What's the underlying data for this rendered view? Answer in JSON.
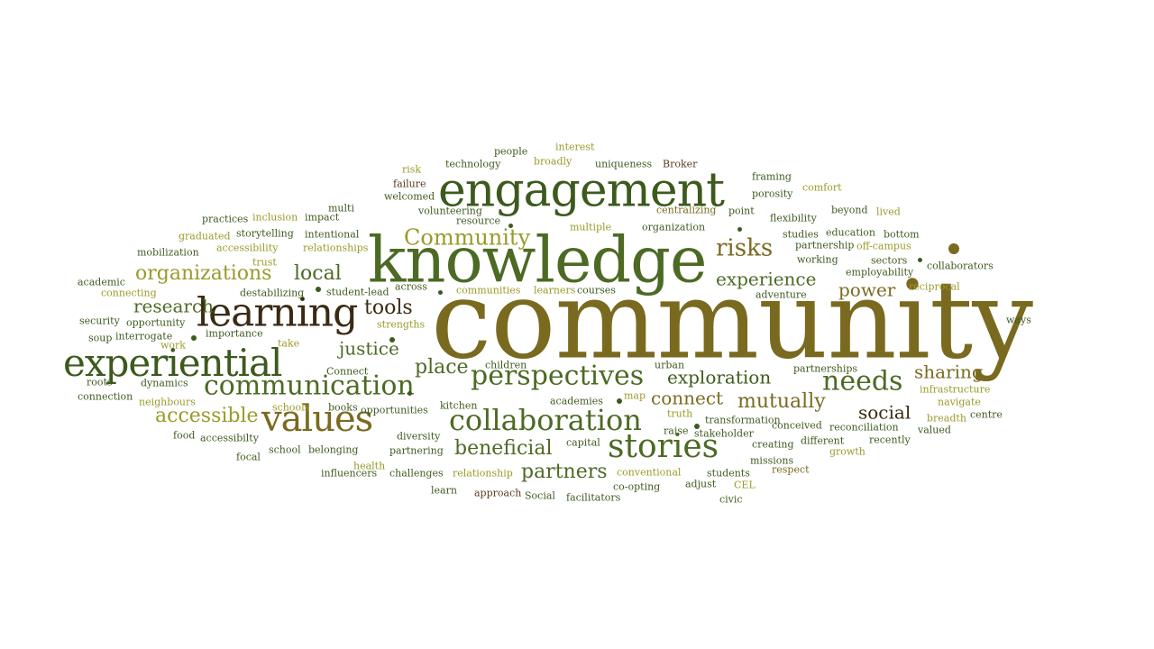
{
  "colors": {
    "darkgreen": "#3d5a1e",
    "green": "#4d6a24",
    "olive": "#7a6a20",
    "brown": "#5a3a1a",
    "yellowgreen": "#9a9a2a",
    "darkbrown": "#3a2a14"
  },
  "words": [
    {
      "text": "community",
      "color": "olive"
    },
    {
      "text": "knowledge",
      "color": "green"
    },
    {
      "text": "engagement",
      "color": "darkgreen"
    },
    {
      "text": "experiential",
      "color": "darkgreen"
    },
    {
      "text": "learning",
      "color": "darkbrown"
    },
    {
      "text": "values",
      "color": "olive"
    },
    {
      "text": "communication",
      "color": "green"
    },
    {
      "text": "collaboration",
      "color": "green"
    },
    {
      "text": "stories",
      "color": "green"
    },
    {
      "text": "perspectives",
      "color": "green"
    },
    {
      "text": "needs",
      "color": "green"
    },
    {
      "text": "risks",
      "color": "olive"
    },
    {
      "text": "Community",
      "color": "yellowgreen"
    },
    {
      "text": "organizations",
      "color": "yellowgreen"
    },
    {
      "text": "local",
      "color": "green"
    },
    {
      "text": "research",
      "color": "green"
    },
    {
      "text": "tools",
      "color": "darkbrown"
    },
    {
      "text": "justice",
      "color": "green"
    },
    {
      "text": "place",
      "color": "green"
    },
    {
      "text": "accessible",
      "color": "yellowgreen"
    },
    {
      "text": "beneficial",
      "color": "green"
    },
    {
      "text": "partners",
      "color": "green"
    },
    {
      "text": "exploration",
      "color": "darkgreen"
    },
    {
      "text": "experience",
      "color": "green"
    },
    {
      "text": "power",
      "color": "olive"
    },
    {
      "text": "sharing",
      "color": "olive"
    },
    {
      "text": "connect",
      "color": "olive"
    },
    {
      "text": "mutually",
      "color": "olive"
    },
    {
      "text": "social",
      "color": "darkbrown"
    },
    {
      "text": "people",
      "color": "darkgreen"
    },
    {
      "text": "interest",
      "color": "yellowgreen"
    },
    {
      "text": "technology",
      "color": "darkgreen"
    },
    {
      "text": "broadly",
      "color": "yellowgreen"
    },
    {
      "text": "uniqueness",
      "color": "darkgreen"
    },
    {
      "text": "Broker",
      "color": "brown"
    },
    {
      "text": "risk",
      "color": "yellowgreen"
    },
    {
      "text": "failure",
      "color": "brown"
    },
    {
      "text": "framing",
      "color": "darkgreen"
    },
    {
      "text": "comfort",
      "color": "yellowgreen"
    },
    {
      "text": "porosity",
      "color": "darkgreen"
    },
    {
      "text": "welcomed",
      "color": "darkgreen"
    },
    {
      "text": "multi",
      "color": "darkgreen"
    },
    {
      "text": "volunteering",
      "color": "darkgreen"
    },
    {
      "text": "centralizing",
      "color": "olive"
    },
    {
      "text": "point",
      "color": "darkgreen"
    },
    {
      "text": "beyond",
      "color": "darkgreen"
    },
    {
      "text": "lived",
      "color": "yellowgreen"
    },
    {
      "text": "practices",
      "color": "darkgreen"
    },
    {
      "text": "inclusion",
      "color": "yellowgreen"
    },
    {
      "text": "impact",
      "color": "darkgreen"
    },
    {
      "text": "resource",
      "color": "darkgreen"
    },
    {
      "text": "flexibility",
      "color": "darkgreen"
    },
    {
      "text": "storytelling",
      "color": "darkgreen"
    },
    {
      "text": "intentional",
      "color": "darkgreen"
    },
    {
      "text": "multiple",
      "color": "yellowgreen"
    },
    {
      "text": "organization",
      "color": "darkgreen"
    },
    {
      "text": "studies",
      "color": "darkgreen"
    },
    {
      "text": "education",
      "color": "darkgreen"
    },
    {
      "text": "bottom",
      "color": "darkgreen"
    },
    {
      "text": "graduated",
      "color": "yellowgreen"
    },
    {
      "text": "partnership",
      "color": "darkgreen"
    },
    {
      "text": "off-campus",
      "color": "yellowgreen"
    },
    {
      "text": "accessibility",
      "color": "yellowgreen"
    },
    {
      "text": "relationships",
      "color": "yellowgreen"
    },
    {
      "text": "mobilization",
      "color": "darkgreen"
    },
    {
      "text": "trust",
      "color": "yellowgreen"
    },
    {
      "text": "working",
      "color": "darkgreen"
    },
    {
      "text": "sectors",
      "color": "darkgreen"
    },
    {
      "text": "employability",
      "color": "darkgreen"
    },
    {
      "text": "collaborators",
      "color": "darkgreen"
    },
    {
      "text": "academic",
      "color": "darkgreen"
    },
    {
      "text": "across",
      "color": "darkgreen"
    },
    {
      "text": "connecting",
      "color": "yellowgreen"
    },
    {
      "text": "destabilizing",
      "color": "darkgreen"
    },
    {
      "text": "student-lead",
      "color": "darkgreen"
    },
    {
      "text": "communities",
      "color": "yellowgreen"
    },
    {
      "text": "learners",
      "color": "yellowgreen"
    },
    {
      "text": "courses",
      "color": "darkgreen"
    },
    {
      "text": "reciprocal",
      "color": "yellowgreen"
    },
    {
      "text": "adventure",
      "color": "darkgreen"
    },
    {
      "text": "security",
      "color": "darkgreen"
    },
    {
      "text": "opportunity",
      "color": "darkgreen"
    },
    {
      "text": "strengths",
      "color": "yellowgreen"
    },
    {
      "text": "ways",
      "color": "darkgreen"
    },
    {
      "text": "soup",
      "color": "darkgreen"
    },
    {
      "text": "interrogate",
      "color": "darkgreen"
    },
    {
      "text": "importance",
      "color": "darkgreen"
    },
    {
      "text": "work",
      "color": "yellowgreen"
    },
    {
      "text": "take",
      "color": "yellowgreen"
    },
    {
      "text": "Connect",
      "color": "darkgreen"
    },
    {
      "text": "children",
      "color": "darkgreen"
    },
    {
      "text": "urban",
      "color": "darkgreen"
    },
    {
      "text": "partnerships",
      "color": "darkgreen"
    },
    {
      "text": "roots",
      "color": "darkgreen"
    },
    {
      "text": "dynamics",
      "color": "darkgreen"
    },
    {
      "text": "infrastructure",
      "color": "yellowgreen"
    },
    {
      "text": "connection",
      "color": "darkgreen"
    },
    {
      "text": "neighbours",
      "color": "yellowgreen"
    },
    {
      "text": "schools",
      "color": "yellowgreen"
    },
    {
      "text": "kitchen",
      "color": "darkgreen"
    },
    {
      "text": "academies",
      "color": "darkgreen"
    },
    {
      "text": "map",
      "color": "yellowgreen"
    },
    {
      "text": "navigate",
      "color": "yellowgreen"
    },
    {
      "text": "books",
      "color": "darkgreen"
    },
    {
      "text": "opportunities",
      "color": "darkgreen"
    },
    {
      "text": "truth",
      "color": "yellowgreen"
    },
    {
      "text": "transformation",
      "color": "darkgreen"
    },
    {
      "text": "breadth",
      "color": "yellowgreen"
    },
    {
      "text": "centre",
      "color": "darkgreen"
    },
    {
      "text": "conceived",
      "color": "darkgreen"
    },
    {
      "text": "reconciliation",
      "color": "darkgreen"
    },
    {
      "text": "food",
      "color": "darkgreen"
    },
    {
      "text": "diversity",
      "color": "darkgreen"
    },
    {
      "text": "raise",
      "color": "darkgreen"
    },
    {
      "text": "stakeholder",
      "color": "darkgreen"
    },
    {
      "text": "valued",
      "color": "darkgreen"
    },
    {
      "text": "accessibilty",
      "color": "darkgreen"
    },
    {
      "text": "partnering",
      "color": "darkgreen"
    },
    {
      "text": "capital",
      "color": "darkgreen"
    },
    {
      "text": "creating",
      "color": "darkgreen"
    },
    {
      "text": "different",
      "color": "darkgreen"
    },
    {
      "text": "recently",
      "color": "darkgreen"
    },
    {
      "text": "school",
      "color": "darkgreen"
    },
    {
      "text": "belonging",
      "color": "darkgreen"
    },
    {
      "text": "growth",
      "color": "yellowgreen"
    },
    {
      "text": "focal",
      "color": "darkgreen"
    },
    {
      "text": "health",
      "color": "yellowgreen"
    },
    {
      "text": "missions",
      "color": "darkgreen"
    },
    {
      "text": "influencers",
      "color": "darkgreen"
    },
    {
      "text": "challenges",
      "color": "darkgreen"
    },
    {
      "text": "relationship",
      "color": "yellowgreen"
    },
    {
      "text": "conventional",
      "color": "yellowgreen"
    },
    {
      "text": "students",
      "color": "darkgreen"
    },
    {
      "text": "respect",
      "color": "olive"
    },
    {
      "text": "adjust",
      "color": "darkgreen"
    },
    {
      "text": "CEL",
      "color": "yellowgreen"
    },
    {
      "text": "learn",
      "color": "darkgreen"
    },
    {
      "text": "approach",
      "color": "brown"
    },
    {
      "text": "Social",
      "color": "darkgreen"
    },
    {
      "text": "facilitators",
      "color": "darkgreen"
    },
    {
      "text": "co-opting",
      "color": "darkgreen"
    },
    {
      "text": "civic",
      "color": "darkgreen"
    }
  ]
}
